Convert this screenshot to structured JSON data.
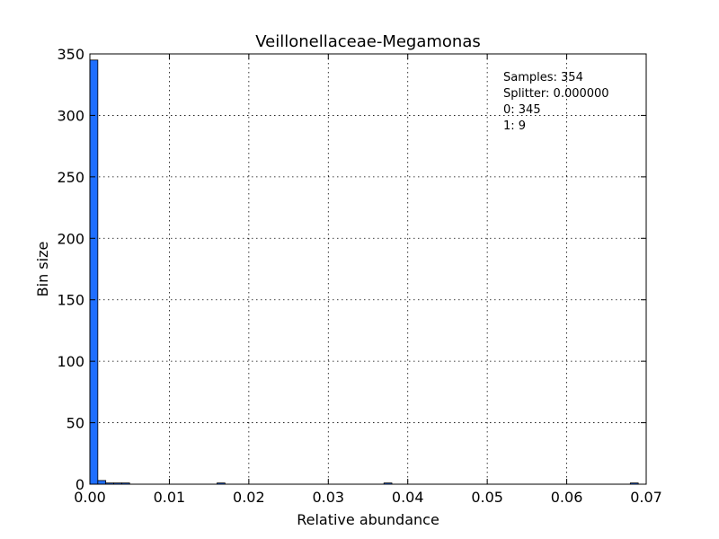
{
  "chart_data": {
    "type": "bar",
    "title": "Veillonellaceae-Megamonas",
    "xlabel": "Relative abundance",
    "ylabel": "Bin size",
    "xlim": [
      0.0,
      0.07
    ],
    "ylim": [
      0,
      350
    ],
    "xticks": [
      "0.00",
      "0.01",
      "0.02",
      "0.03",
      "0.04",
      "0.05",
      "0.06",
      "0.07"
    ],
    "xtick_values": [
      0.0,
      0.01,
      0.02,
      0.03,
      0.04,
      0.05,
      0.06,
      0.07
    ],
    "yticks": [
      "0",
      "50",
      "100",
      "150",
      "200",
      "250",
      "300",
      "350"
    ],
    "ytick_values": [
      0,
      50,
      100,
      150,
      200,
      250,
      300,
      350
    ],
    "grid": true,
    "bar_color": "#1f6fff",
    "bins": [
      {
        "x0": 0.0,
        "x1": 0.001,
        "count": 345
      },
      {
        "x0": 0.001,
        "x1": 0.002,
        "count": 3
      },
      {
        "x0": 0.002,
        "x1": 0.003,
        "count": 1
      },
      {
        "x0": 0.003,
        "x1": 0.004,
        "count": 1
      },
      {
        "x0": 0.004,
        "x1": 0.005,
        "count": 1
      },
      {
        "x0": 0.016,
        "x1": 0.017,
        "count": 1
      },
      {
        "x0": 0.037,
        "x1": 0.038,
        "count": 1
      },
      {
        "x0": 0.068,
        "x1": 0.069,
        "count": 1
      }
    ],
    "annotations": [
      "Samples: 354",
      "Splitter: 0.000000",
      "0: 345",
      "1: 9"
    ]
  }
}
